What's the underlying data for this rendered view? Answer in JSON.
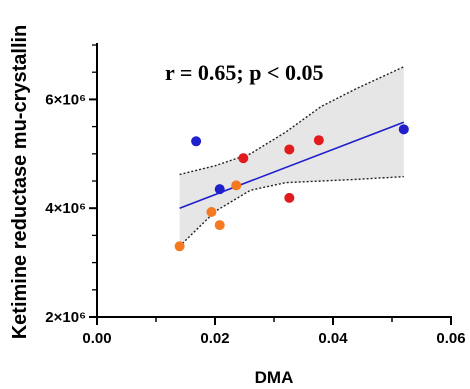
{
  "chart_data": {
    "type": "scatter",
    "xlabel": "DMA",
    "ylabel": "Ketimine reductase mu-crystallin",
    "xlim": [
      0.0,
      0.06
    ],
    "ylim": [
      2000000,
      7000000
    ],
    "x_ticks": [
      0.0,
      0.02,
      0.04,
      0.06
    ],
    "x_tick_labels": [
      "0.00",
      "0.02",
      "0.04",
      "0.06"
    ],
    "y_ticks": [
      2000000,
      4000000,
      6000000
    ],
    "y_tick_labels": [
      "2×10⁶",
      "4×10⁶",
      "6×10⁶"
    ],
    "annotation": "r = 0.65; p < 0.05",
    "grid": false,
    "series": [
      {
        "color": "#1f1fcc",
        "points": [
          {
            "x": 0.0168,
            "y": 5230000
          },
          {
            "x": 0.0208,
            "y": 4350000
          },
          {
            "x": 0.052,
            "y": 5450000
          }
        ]
      },
      {
        "color": "#e31a1c",
        "points": [
          {
            "x": 0.0248,
            "y": 4920000
          },
          {
            "x": 0.0326,
            "y": 5080000
          },
          {
            "x": 0.0376,
            "y": 5250000
          },
          {
            "x": 0.0326,
            "y": 4190000
          }
        ]
      },
      {
        "color": "#f47920",
        "points": [
          {
            "x": 0.014,
            "y": 3300000
          },
          {
            "x": 0.0194,
            "y": 3930000
          },
          {
            "x": 0.0208,
            "y": 3690000
          },
          {
            "x": 0.0236,
            "y": 4420000
          }
        ]
      }
    ],
    "regression_line": {
      "color": "#1f1fcc",
      "points": [
        {
          "x": 0.014,
          "y": 4000000
        },
        {
          "x": 0.052,
          "y": 5580000
        }
      ]
    },
    "confidence_band": {
      "fill": "#e6e6e6",
      "upper": [
        {
          "x": 0.014,
          "y": 4620000
        },
        {
          "x": 0.02,
          "y": 4780000
        },
        {
          "x": 0.026,
          "y": 5000000
        },
        {
          "x": 0.032,
          "y": 5400000
        },
        {
          "x": 0.038,
          "y": 5870000
        },
        {
          "x": 0.044,
          "y": 6200000
        },
        {
          "x": 0.052,
          "y": 6600000
        }
      ],
      "lower": [
        {
          "x": 0.014,
          "y": 3300000
        },
        {
          "x": 0.02,
          "y": 3940000
        },
        {
          "x": 0.026,
          "y": 4330000
        },
        {
          "x": 0.032,
          "y": 4470000
        },
        {
          "x": 0.038,
          "y": 4500000
        },
        {
          "x": 0.044,
          "y": 4530000
        },
        {
          "x": 0.052,
          "y": 4580000
        }
      ]
    }
  }
}
